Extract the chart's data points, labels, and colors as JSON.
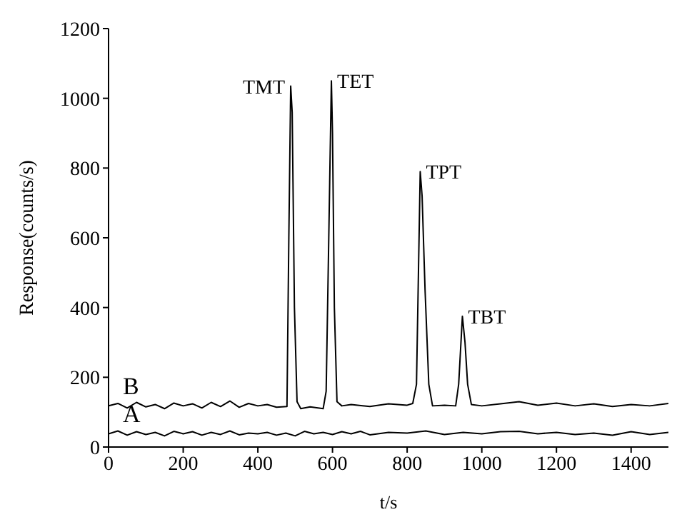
{
  "chart_data": {
    "type": "line",
    "xlabel": "t/s",
    "ylabel": "Response(counts/s)",
    "xlim": [
      0,
      1500
    ],
    "ylim": [
      0,
      1200
    ],
    "xticks": [
      0,
      200,
      400,
      600,
      800,
      1000,
      1200,
      1400
    ],
    "yticks": [
      0,
      200,
      400,
      600,
      800,
      1000,
      1200
    ],
    "grid": false,
    "legend": false,
    "marker": "none",
    "line_style": "solid",
    "series": [
      {
        "name": "B",
        "color": "#000000",
        "x": [
          0,
          25,
          50,
          75,
          100,
          125,
          150,
          175,
          200,
          225,
          250,
          275,
          300,
          325,
          350,
          375,
          400,
          425,
          450,
          478,
          483,
          488,
          492,
          498,
          505,
          515,
          540,
          575,
          583,
          590,
          597,
          600,
          605,
          612,
          625,
          650,
          700,
          750,
          800,
          815,
          825,
          835,
          840,
          848,
          858,
          868,
          900,
          930,
          938,
          948,
          955,
          962,
          972,
          1000,
          1050,
          1100,
          1150,
          1200,
          1250,
          1300,
          1350,
          1400,
          1450,
          1500
        ],
        "values": [
          118,
          125,
          112,
          128,
          115,
          122,
          110,
          126,
          118,
          124,
          112,
          128,
          116,
          132,
          114,
          125,
          118,
          122,
          114,
          116,
          600,
          1035,
          960,
          400,
          130,
          110,
          115,
          110,
          160,
          600,
          1050,
          900,
          400,
          130,
          118,
          122,
          116,
          124,
          120,
          125,
          180,
          790,
          720,
          450,
          180,
          118,
          120,
          118,
          180,
          375,
          300,
          180,
          122,
          118,
          124,
          130,
          120,
          126,
          118,
          124,
          116,
          122,
          118,
          125
        ]
      },
      {
        "name": "A",
        "color": "#000000",
        "x": [
          0,
          25,
          50,
          75,
          100,
          125,
          150,
          175,
          200,
          225,
          250,
          275,
          300,
          325,
          350,
          375,
          400,
          425,
          450,
          475,
          500,
          525,
          550,
          575,
          600,
          625,
          650,
          675,
          700,
          750,
          800,
          850,
          900,
          950,
          1000,
          1050,
          1100,
          1150,
          1200,
          1250,
          1300,
          1350,
          1400,
          1450,
          1500
        ],
        "values": [
          38,
          46,
          34,
          44,
          36,
          42,
          32,
          45,
          38,
          44,
          34,
          42,
          36,
          46,
          35,
          40,
          38,
          42,
          34,
          40,
          32,
          45,
          38,
          42,
          36,
          44,
          38,
          45,
          35,
          42,
          40,
          46,
          36,
          42,
          38,
          44,
          45,
          38,
          42,
          36,
          40,
          34,
          44,
          36,
          42
        ]
      }
    ],
    "annotations": [
      {
        "text": "TMT",
        "x": 488,
        "y": 1035
      },
      {
        "text": "TET",
        "x": 597,
        "y": 1050
      },
      {
        "text": "TPT",
        "x": 835,
        "y": 790
      },
      {
        "text": "TBT",
        "x": 948,
        "y": 375
      }
    ]
  }
}
